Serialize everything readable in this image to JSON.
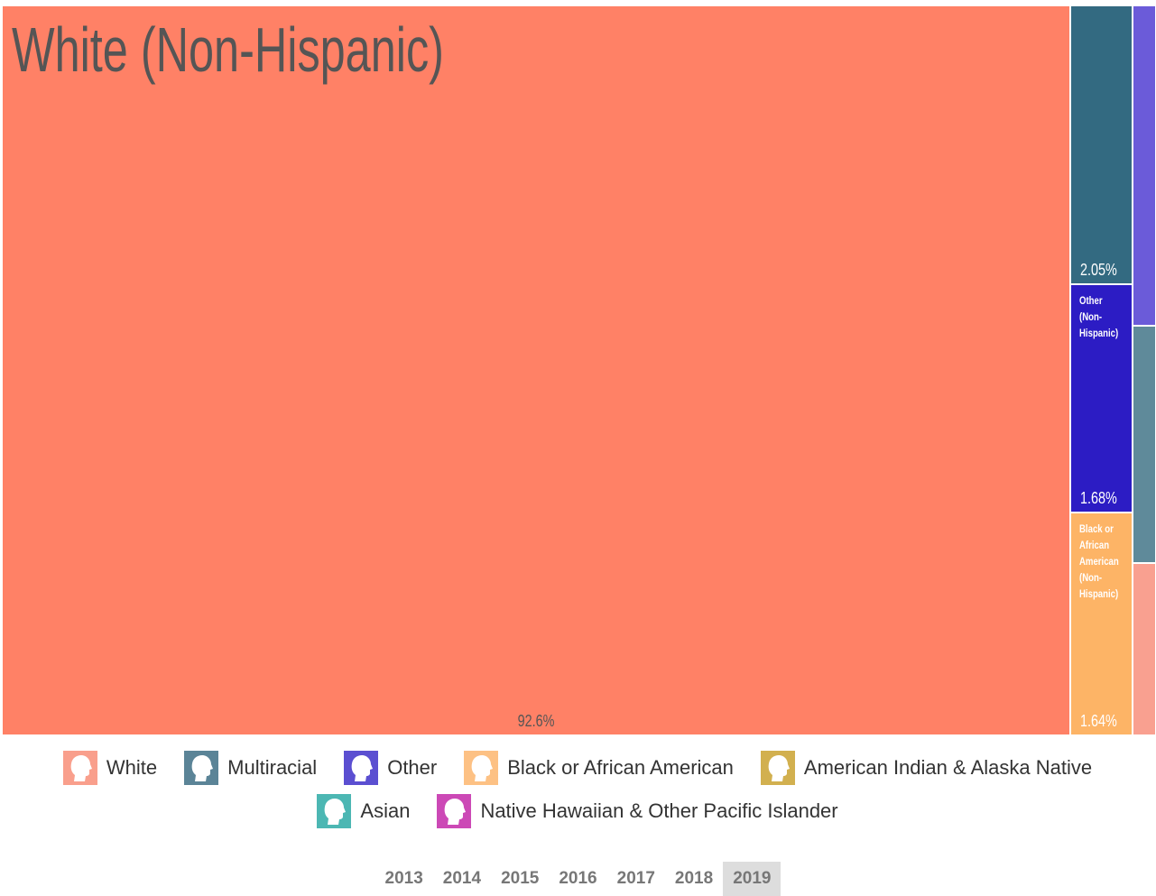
{
  "chart_data": {
    "type": "treemap",
    "categories": [
      "White (Non-Hispanic)",
      null,
      "Other (Non-Hispanic)",
      "Black or African American (Non-Hispanic)",
      null,
      null,
      null
    ],
    "values": [
      92.6,
      2.05,
      1.68,
      1.64,
      0.89,
      0.66,
      0.48
    ],
    "value_labels": [
      "92.6%",
      "2.05%",
      "1.68%",
      "1.64%",
      null,
      null,
      null
    ],
    "colors": [
      "#ff8166",
      "#336a81",
      "#2c1cc4",
      "#fdb466",
      "#6b5bd9",
      "#5f8a9a",
      "#f9a090"
    ],
    "legend": [
      {
        "name": "White",
        "color": "#f99f8c"
      },
      {
        "name": "Multiracial",
        "color": "#5b8497"
      },
      {
        "name": "Other",
        "color": "#5b4fd1"
      },
      {
        "name": "Black or African American",
        "color": "#fdc184"
      },
      {
        "name": "American Indian & Alaska Native",
        "color": "#d2b04f"
      },
      {
        "name": "Asian",
        "color": "#4cb7b3"
      },
      {
        "name": "Native Hawaiian & Other Pacific Islander",
        "color": "#cc49b6"
      }
    ],
    "years": [
      "2013",
      "2014",
      "2015",
      "2016",
      "2017",
      "2018",
      "2019"
    ],
    "selected_year": "2019"
  }
}
